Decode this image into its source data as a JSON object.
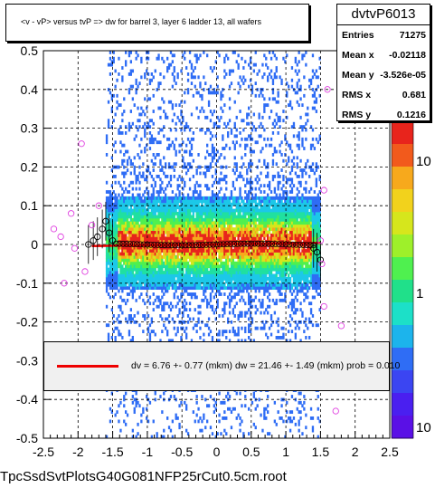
{
  "chart_data": {
    "type": "heatmap",
    "title": "<v - vP>      versus  tvP =>  dw for barrel 3, layer 6 ladder 13, all wafers",
    "xlabel": "",
    "ylabel": "",
    "xlim": [
      -2.5,
      2.5
    ],
    "ylim": [
      -0.5,
      0.5
    ],
    "x_ticks": [
      "-2.5",
      "-2",
      "-1.5",
      "-1",
      "-0.5",
      "0",
      "0.5",
      "1",
      "1.5",
      "2",
      "2.5"
    ],
    "y_ticks": [
      "-0.5",
      "-0.4",
      "-0.3",
      "-0.2",
      "-0.1",
      "0",
      "0.1",
      "0.2",
      "0.3",
      "0.4",
      "0.5"
    ],
    "grid": true,
    "colorbar": {
      "scale": "log",
      "labels": [
        "10",
        "1",
        "10"
      ]
    },
    "stats": {
      "name": "dvtvP6013",
      "rows": [
        {
          "label": "Entries",
          "value": "71275"
        },
        {
          "label": "Mean x",
          "value": "-0.02118"
        },
        {
          "label": "Mean y",
          "value": "-3.526e-05"
        },
        {
          "label": "RMS x",
          "value": "0.681"
        },
        {
          "label": "RMS y",
          "value": "0.1216"
        }
      ]
    },
    "fit_text": "dv =    6.76 +-  0.77 (mkm) dw =   21.46 +-  1.49 (mkm) prob = 0.010",
    "profile_points": [
      {
        "x": -1.85,
        "y": 0.0
      },
      {
        "x": -1.78,
        "y": 0.01
      },
      {
        "x": -1.72,
        "y": 0.02
      },
      {
        "x": -1.65,
        "y": 0.04
      },
      {
        "x": -1.6,
        "y": 0.06
      },
      {
        "x": -1.55,
        "y": 0.03
      },
      {
        "x": -1.5,
        "y": 0.01
      },
      {
        "x": 1.4,
        "y": -0.01
      },
      {
        "x": 1.45,
        "y": -0.02
      },
      {
        "x": 1.5,
        "y": -0.04
      }
    ],
    "outlier_points": [
      {
        "x": -2.35,
        "y": 0.04
      },
      {
        "x": -2.25,
        "y": 0.02
      },
      {
        "x": -2.1,
        "y": 0.08
      },
      {
        "x": -2.05,
        "y": -0.01
      },
      {
        "x": -1.95,
        "y": 0.26
      },
      {
        "x": -1.9,
        "y": -0.07
      },
      {
        "x": -1.8,
        "y": 0.05
      },
      {
        "x": -1.7,
        "y": 0.1
      },
      {
        "x": -2.2,
        "y": -0.1
      },
      {
        "x": 1.55,
        "y": 0.14
      },
      {
        "x": 1.6,
        "y": 0.4
      },
      {
        "x": 1.55,
        "y": -0.16
      },
      {
        "x": 1.8,
        "y": -0.21
      },
      {
        "x": 1.72,
        "y": -0.43
      },
      {
        "x": 1.5,
        "y": 0.01
      },
      {
        "x": 1.52,
        "y": -0.05
      }
    ],
    "fit_line": {
      "x0": -1.8,
      "y0": -0.004,
      "x1": 1.5,
      "y1": 0.004
    }
  },
  "file_label": "TpcSsdSvtPlotsG40G081NFP25rCut0.5cm.root"
}
